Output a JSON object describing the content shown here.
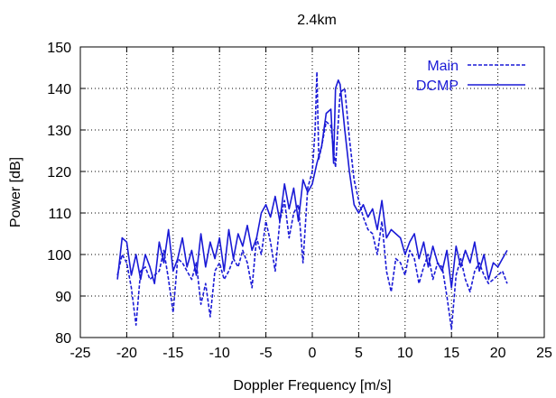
{
  "chart_data": {
    "type": "line",
    "title": "2.4km",
    "xlabel": "Doppler Frequency [m/s]",
    "ylabel": "Power [dB]",
    "xlim": [
      -25,
      25
    ],
    "ylim": [
      80,
      150
    ],
    "xticks": [
      -25,
      -20,
      -15,
      -10,
      -5,
      0,
      5,
      10,
      15,
      20,
      25
    ],
    "yticks": [
      80,
      90,
      100,
      110,
      120,
      130,
      140,
      150
    ],
    "grid": true,
    "legend_position": "top-right",
    "colors": {
      "line": "#1a1ad6",
      "grid": "#000000",
      "axis": "#000000"
    },
    "series": [
      {
        "name": "Main",
        "style": "dashed",
        "x": [
          -21,
          -20.5,
          -20,
          -19.5,
          -19,
          -18.5,
          -18,
          -17.5,
          -17,
          -16.5,
          -16,
          -15.5,
          -15,
          -14.5,
          -14,
          -13.5,
          -13,
          -12.5,
          -12,
          -11.5,
          -11,
          -10.5,
          -10,
          -9.5,
          -9,
          -8.5,
          -8,
          -7.5,
          -7,
          -6.5,
          -6,
          -5.5,
          -5,
          -4.5,
          -4,
          -3.5,
          -3,
          -2.5,
          -2,
          -1.5,
          -1,
          -0.5,
          0,
          0.3,
          0.5,
          0.7,
          1,
          1.5,
          2,
          2.5,
          3,
          3.5,
          4,
          4.5,
          5,
          5.5,
          6,
          6.5,
          7,
          7.5,
          8,
          8.5,
          9,
          9.5,
          10,
          10.5,
          11,
          11.5,
          12,
          12.5,
          13,
          13.5,
          14,
          14.5,
          15,
          15.5,
          16,
          16.5,
          17,
          17.5,
          18,
          18.5,
          19,
          19.5,
          20,
          20.5,
          21
        ],
        "values": [
          95,
          100,
          98,
          92,
          83,
          96,
          97,
          94,
          95,
          96,
          101,
          94,
          86,
          99,
          98,
          96,
          94,
          98,
          88,
          93,
          85,
          96,
          98,
          94,
          96,
          99,
          97,
          101,
          98,
          92,
          104,
          100,
          108,
          103,
          96,
          108,
          113,
          104,
          110,
          112,
          98,
          116,
          120,
          130,
          144,
          123,
          126,
          132,
          131,
          121,
          139,
          140,
          128,
          118,
          113,
          109,
          106,
          105,
          100,
          108,
          96,
          91,
          99,
          98,
          95,
          101,
          99,
          93,
          97,
          100,
          94,
          98,
          97,
          90,
          82,
          95,
          99,
          94,
          91,
          96,
          98,
          95,
          93,
          94,
          95,
          96,
          93
        ]
      },
      {
        "name": "DCMP",
        "style": "solid",
        "x": [
          -21,
          -20.5,
          -20,
          -19.5,
          -19,
          -18.5,
          -18,
          -17.5,
          -17,
          -16.5,
          -16,
          -15.5,
          -15,
          -14.5,
          -14,
          -13.5,
          -13,
          -12.5,
          -12,
          -11.5,
          -11,
          -10.5,
          -10,
          -9.5,
          -9,
          -8.5,
          -8,
          -7.5,
          -7,
          -6.5,
          -6,
          -5.5,
          -5,
          -4.5,
          -4,
          -3.5,
          -3,
          -2.5,
          -2,
          -1.5,
          -1,
          -0.5,
          0,
          0.5,
          1,
          1.5,
          2,
          2.3,
          2.5,
          2.8,
          3,
          3.5,
          4,
          4.5,
          5,
          5.5,
          6,
          6.5,
          7,
          7.5,
          8,
          8.5,
          9,
          9.5,
          10,
          10.5,
          11,
          11.5,
          12,
          12.5,
          13,
          13.5,
          14,
          14.5,
          15,
          15.5,
          16,
          16.5,
          17,
          17.5,
          18,
          18.5,
          19,
          19.5,
          20,
          20.5,
          21
        ],
        "values": [
          94,
          104,
          103,
          95,
          100,
          94,
          100,
          97,
          93,
          103,
          98,
          106,
          96,
          99,
          104,
          97,
          101,
          95,
          105,
          97,
          103,
          99,
          104,
          96,
          106,
          99,
          105,
          102,
          107,
          101,
          104,
          110,
          112,
          109,
          114,
          108,
          117,
          111,
          116,
          108,
          118,
          115,
          117,
          122,
          126,
          134,
          135,
          122,
          140,
          142,
          141,
          130,
          120,
          112,
          110,
          112,
          109,
          111,
          106,
          113,
          104,
          106,
          105,
          104,
          100,
          103,
          105,
          99,
          103,
          97,
          102,
          98,
          96,
          101,
          92,
          102,
          97,
          101,
          98,
          103,
          96,
          100,
          94,
          98,
          97,
          99,
          101
        ]
      }
    ]
  }
}
